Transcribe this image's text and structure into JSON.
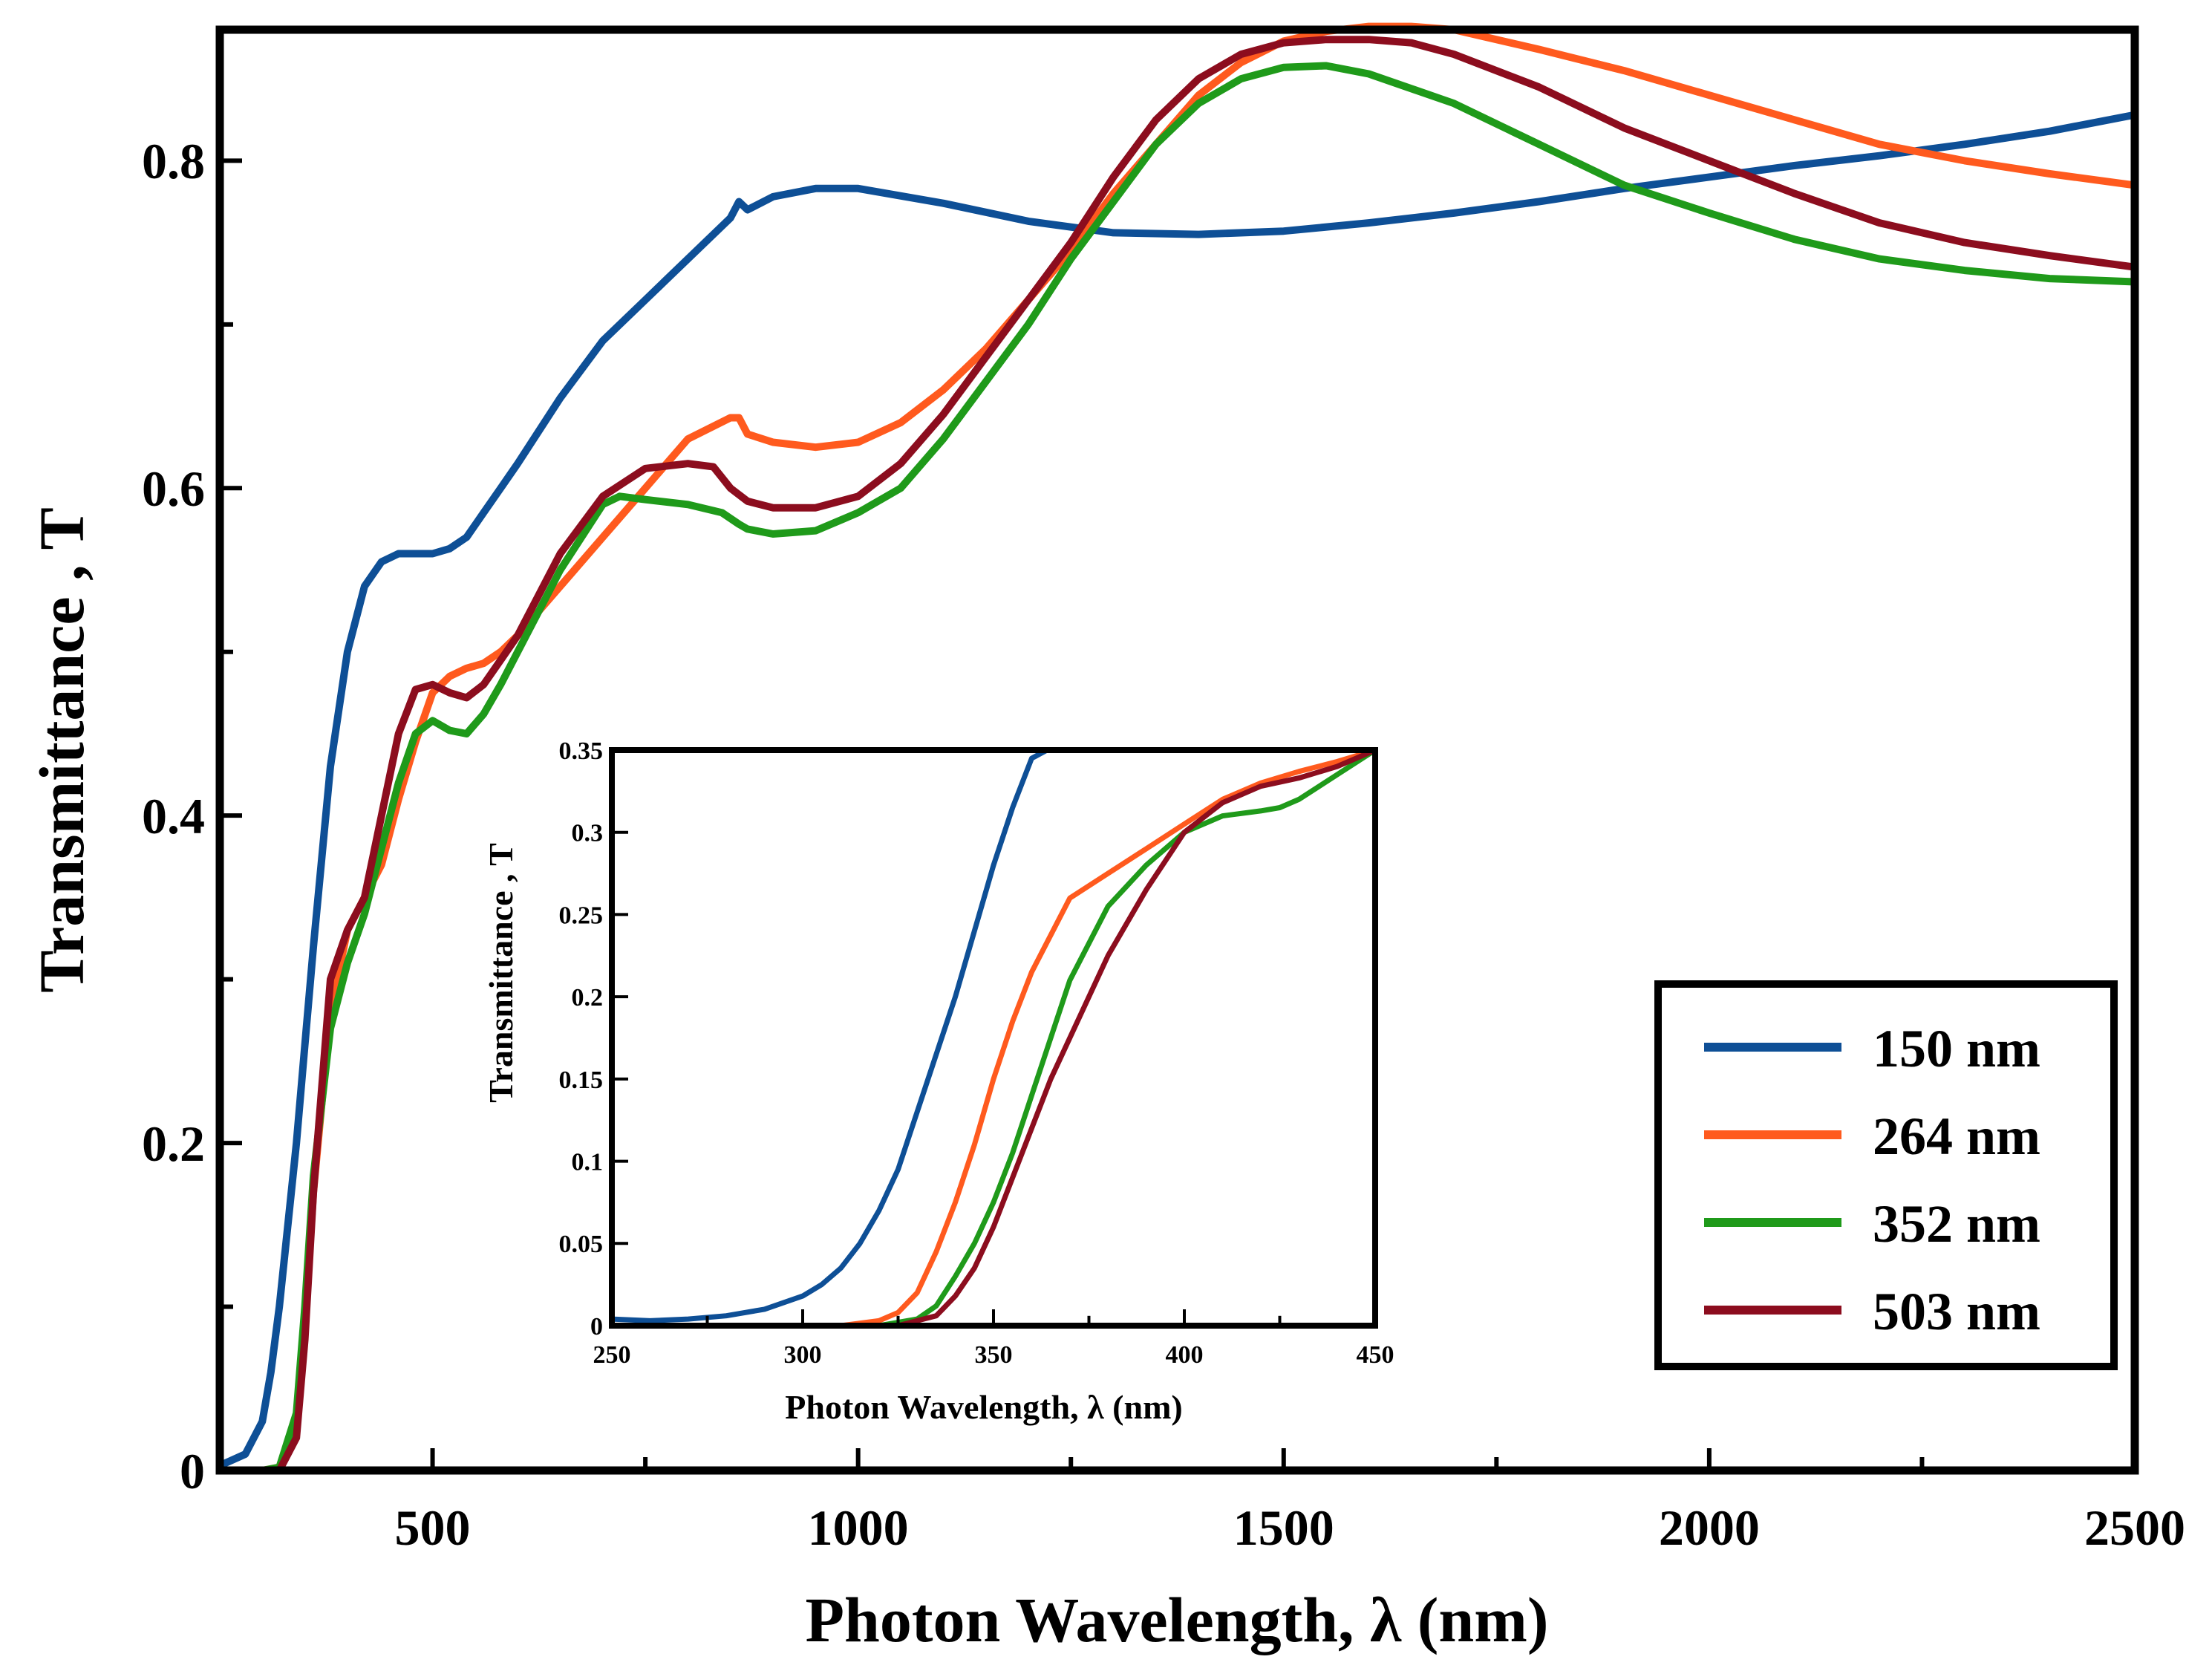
{
  "chart_data": [
    {
      "id": "main",
      "type": "line",
      "xlabel": "Photon Wavelength, λ (nm)",
      "ylabel": "Transmittance , T",
      "xlim": [
        250,
        2500
      ],
      "ylim": [
        0,
        0.88
      ],
      "xticks": [
        500,
        1000,
        1500,
        2000,
        2500
      ],
      "xtick_labels": [
        "500",
        "1000",
        "1500",
        "2000",
        "2500"
      ],
      "yticks": [
        0,
        0.2,
        0.4,
        0.6,
        0.8
      ],
      "ytick_labels": [
        "0",
        "0.2",
        "0.4",
        "0.6",
        "0.8"
      ],
      "legend_position": "lower-right",
      "series": [
        {
          "name": "150 nm",
          "color": "#0e4f96",
          "x": [
            250,
            280,
            300,
            310,
            320,
            330,
            340,
            350,
            360,
            380,
            400,
            420,
            440,
            460,
            480,
            500,
            520,
            540,
            560,
            580,
            600,
            650,
            700,
            750,
            800,
            850,
            860,
            870,
            900,
            950,
            1000,
            1100,
            1200,
            1300,
            1400,
            1500,
            1600,
            1700,
            1800,
            1900,
            2000,
            2100,
            2200,
            2300,
            2400,
            2500
          ],
          "y": [
            0.003,
            0.01,
            0.03,
            0.06,
            0.1,
            0.15,
            0.2,
            0.26,
            0.32,
            0.43,
            0.5,
            0.54,
            0.555,
            0.56,
            0.56,
            0.56,
            0.563,
            0.57,
            0.585,
            0.6,
            0.615,
            0.655,
            0.69,
            0.715,
            0.74,
            0.765,
            0.775,
            0.77,
            0.778,
            0.783,
            0.783,
            0.774,
            0.763,
            0.756,
            0.755,
            0.757,
            0.762,
            0.768,
            0.775,
            0.783,
            0.79,
            0.797,
            0.803,
            0.81,
            0.818,
            0.828
          ]
        },
        {
          "name": "264 nm",
          "color": "#ff5a1e",
          "x": [
            250,
            300,
            320,
            340,
            350,
            360,
            380,
            400,
            420,
            440,
            460,
            480,
            500,
            520,
            540,
            560,
            580,
            600,
            650,
            700,
            750,
            800,
            850,
            860,
            870,
            900,
            950,
            1000,
            1050,
            1100,
            1150,
            1200,
            1250,
            1300,
            1350,
            1400,
            1450,
            1500,
            1550,
            1600,
            1650,
            1700,
            1800,
            1900,
            2000,
            2100,
            2200,
            2300,
            2400,
            2500
          ],
          "y": [
            0,
            0,
            0.002,
            0.03,
            0.09,
            0.17,
            0.28,
            0.33,
            0.35,
            0.37,
            0.41,
            0.445,
            0.475,
            0.485,
            0.49,
            0.493,
            0.5,
            0.51,
            0.54,
            0.57,
            0.6,
            0.63,
            0.643,
            0.643,
            0.633,
            0.628,
            0.625,
            0.628,
            0.64,
            0.66,
            0.685,
            0.715,
            0.745,
            0.78,
            0.81,
            0.84,
            0.86,
            0.873,
            0.879,
            0.882,
            0.882,
            0.88,
            0.868,
            0.855,
            0.84,
            0.825,
            0.81,
            0.8,
            0.792,
            0.785
          ]
        },
        {
          "name": "352 nm",
          "color": "#1f9a1a",
          "x": [
            250,
            300,
            320,
            340,
            350,
            360,
            380,
            400,
            420,
            440,
            460,
            480,
            500,
            520,
            540,
            560,
            580,
            600,
            650,
            700,
            720,
            750,
            800,
            840,
            860,
            870,
            900,
            950,
            1000,
            1050,
            1100,
            1150,
            1200,
            1250,
            1300,
            1350,
            1400,
            1450,
            1500,
            1550,
            1600,
            1700,
            1800,
            1900,
            2000,
            2100,
            2200,
            2300,
            2400,
            2500
          ],
          "y": [
            0,
            0,
            0.002,
            0.035,
            0.1,
            0.18,
            0.27,
            0.31,
            0.34,
            0.38,
            0.42,
            0.45,
            0.458,
            0.452,
            0.45,
            0.462,
            0.48,
            0.5,
            0.55,
            0.59,
            0.595,
            0.593,
            0.59,
            0.585,
            0.578,
            0.575,
            0.572,
            0.574,
            0.585,
            0.6,
            0.63,
            0.665,
            0.7,
            0.74,
            0.775,
            0.81,
            0.835,
            0.85,
            0.857,
            0.858,
            0.853,
            0.835,
            0.81,
            0.785,
            0.768,
            0.752,
            0.74,
            0.733,
            0.728,
            0.726
          ]
        },
        {
          "name": "503 nm",
          "color": "#8c0d1e",
          "x": [
            250,
            300,
            320,
            340,
            350,
            360,
            380,
            400,
            420,
            440,
            460,
            480,
            500,
            520,
            540,
            560,
            580,
            600,
            650,
            700,
            750,
            800,
            830,
            850,
            870,
            900,
            950,
            1000,
            1050,
            1100,
            1150,
            1200,
            1250,
            1300,
            1350,
            1400,
            1450,
            1500,
            1550,
            1600,
            1650,
            1700,
            1800,
            1900,
            2000,
            2100,
            2200,
            2300,
            2400,
            2500
          ],
          "y": [
            0,
            0,
            0,
            0.02,
            0.08,
            0.17,
            0.3,
            0.33,
            0.35,
            0.4,
            0.45,
            0.477,
            0.48,
            0.475,
            0.472,
            0.48,
            0.495,
            0.51,
            0.56,
            0.595,
            0.612,
            0.615,
            0.613,
            0.6,
            0.592,
            0.588,
            0.588,
            0.595,
            0.615,
            0.645,
            0.68,
            0.715,
            0.75,
            0.79,
            0.825,
            0.85,
            0.865,
            0.872,
            0.874,
            0.874,
            0.872,
            0.865,
            0.845,
            0.82,
            0.8,
            0.78,
            0.762,
            0.75,
            0.742,
            0.735
          ]
        }
      ]
    },
    {
      "id": "inset",
      "type": "line",
      "xlabel": "Photon Wavelength, λ (nm)",
      "ylabel": "Transmittance , T",
      "xlim": [
        250,
        450
      ],
      "ylim": [
        0,
        0.35
      ],
      "xticks": [
        250,
        300,
        350,
        400,
        450
      ],
      "xtick_labels": [
        "250",
        "300",
        "350",
        "400",
        "450"
      ],
      "yticks": [
        0,
        0.05,
        0.1,
        0.15,
        0.2,
        0.25,
        0.3,
        0.35
      ],
      "ytick_labels": [
        "0",
        "0.05",
        "0.1",
        "0.15",
        "0.2",
        "0.25",
        "0.3",
        "0.35"
      ],
      "series": [
        {
          "name": "150 nm",
          "color": "#0e4f96",
          "x": [
            250,
            260,
            270,
            280,
            290,
            300,
            305,
            310,
            315,
            320,
            325,
            330,
            335,
            340,
            345,
            350,
            355,
            360,
            364
          ],
          "y": [
            0.004,
            0.003,
            0.004,
            0.006,
            0.01,
            0.018,
            0.025,
            0.035,
            0.05,
            0.07,
            0.095,
            0.13,
            0.165,
            0.2,
            0.24,
            0.28,
            0.315,
            0.345,
            0.35
          ]
        },
        {
          "name": "264 nm",
          "color": "#ff5a1e",
          "x": [
            250,
            310,
            320,
            325,
            330,
            335,
            340,
            345,
            350,
            355,
            360,
            370,
            380,
            390,
            400,
            410,
            420,
            430,
            440,
            450
          ],
          "y": [
            0,
            0,
            0.003,
            0.008,
            0.02,
            0.045,
            0.075,
            0.11,
            0.15,
            0.185,
            0.215,
            0.26,
            0.275,
            0.29,
            0.305,
            0.32,
            0.33,
            0.337,
            0.343,
            0.35
          ]
        },
        {
          "name": "352 nm",
          "color": "#1f9a1a",
          "x": [
            250,
            320,
            330,
            335,
            340,
            345,
            350,
            355,
            360,
            365,
            370,
            380,
            390,
            400,
            410,
            420,
            425,
            430,
            440,
            450
          ],
          "y": [
            0,
            0,
            0.004,
            0.012,
            0.03,
            0.05,
            0.075,
            0.105,
            0.14,
            0.175,
            0.21,
            0.255,
            0.28,
            0.3,
            0.31,
            0.313,
            0.315,
            0.32,
            0.335,
            0.35
          ]
        },
        {
          "name": "503 nm",
          "color": "#8c0d1e",
          "x": [
            250,
            325,
            335,
            340,
            345,
            350,
            355,
            360,
            365,
            370,
            380,
            390,
            400,
            410,
            420,
            430,
            440,
            450
          ],
          "y": [
            0,
            0,
            0.006,
            0.018,
            0.035,
            0.06,
            0.09,
            0.12,
            0.15,
            0.175,
            0.225,
            0.265,
            0.3,
            0.318,
            0.328,
            0.333,
            0.34,
            0.35
          ]
        }
      ]
    }
  ]
}
